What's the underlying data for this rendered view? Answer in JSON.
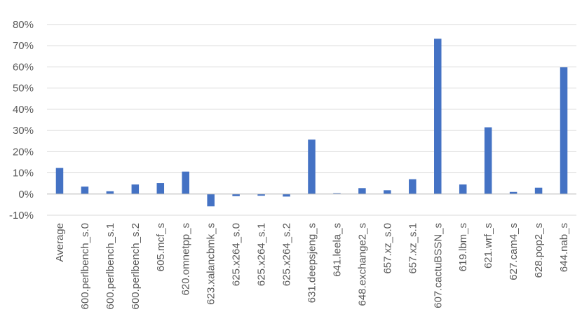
{
  "chart_data": {
    "type": "bar",
    "categories": [
      "Average",
      "600.perlbench_s.0",
      "600.perlbench_s.1",
      "600.perlbench_s.2",
      "605.mcf_s",
      "620.omnetpp_s",
      "623.xalancbmk_s",
      "625.x264_s.0",
      "625.x264_s.1",
      "625.x264_s.2",
      "631.deepsjeng_s",
      "641.leela_s",
      "648.exchange2_s",
      "657.xz_s.0",
      "657.xz_s.1",
      "607.cactuBSSN_s",
      "619.lbm_s",
      "621.wrf_s",
      "627.cam4_s",
      "628.pop2_s",
      "644.nab_s"
    ],
    "values": [
      12.3,
      3.5,
      1.3,
      4.5,
      5.2,
      10.6,
      -5.8,
      -1.0,
      -0.8,
      -1.2,
      25.7,
      0.4,
      2.8,
      1.8,
      7.0,
      73.3,
      4.5,
      31.5,
      1.0,
      3.0,
      59.8
    ],
    "y_ticks": [
      "-10%",
      "0%",
      "10%",
      "20%",
      "30%",
      "40%",
      "50%",
      "60%",
      "70%",
      "80%"
    ],
    "ylim": [
      -10,
      80
    ],
    "y_unit": "%",
    "title": "",
    "xlabel": "",
    "ylabel": "",
    "grid": true,
    "legend": "none",
    "colors": {
      "bar": "#4472C4",
      "grid": "#D9D9D9",
      "axis": "#BFBFBF",
      "text": "#595959"
    }
  }
}
